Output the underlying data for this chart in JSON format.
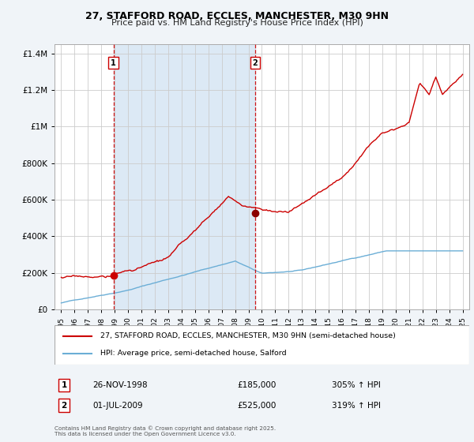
{
  "title_line1": "27, STAFFORD ROAD, ECCLES, MANCHESTER, M30 9HN",
  "title_line2": "Price paid vs. HM Land Registry's House Price Index (HPI)",
  "background_color": "#f0f4f8",
  "plot_bg_color": "#ffffff",
  "shaded_region_color": "#dce9f5",
  "hpi_line_color": "#6baed6",
  "price_line_color": "#cc0000",
  "grid_color": "#cccccc",
  "annotation1": {
    "label": "1",
    "date_x": 1998.9,
    "price": 185000,
    "date_str": "26-NOV-1998",
    "price_str": "£185,000",
    "hpi_str": "305% ↑ HPI"
  },
  "annotation2": {
    "label": "2",
    "date_x": 2009.5,
    "price": 525000,
    "date_str": "01-JUL-2009",
    "price_str": "£525,000",
    "hpi_str": "319% ↑ HPI"
  },
  "legend_line1": "27, STAFFORD ROAD, ECCLES, MANCHESTER, M30 9HN (semi-detached house)",
  "legend_line2": "HPI: Average price, semi-detached house, Salford",
  "footer": "Contains HM Land Registry data © Crown copyright and database right 2025.\nThis data is licensed under the Open Government Licence v3.0.",
  "ylim": [
    0,
    1450000
  ],
  "xlim": [
    1994.5,
    2025.5
  ],
  "yticks": [
    0,
    200000,
    400000,
    600000,
    800000,
    1000000,
    1200000,
    1400000
  ],
  "ytick_labels": [
    "£0",
    "£200K",
    "£400K",
    "£600K",
    "£800K",
    "£1M",
    "£1.2M",
    "£1.4M"
  ],
  "xticks": [
    1995,
    1996,
    1997,
    1998,
    1999,
    2000,
    2001,
    2002,
    2003,
    2004,
    2005,
    2006,
    2007,
    2008,
    2009,
    2010,
    2011,
    2012,
    2013,
    2014,
    2015,
    2016,
    2017,
    2018,
    2019,
    2020,
    2021,
    2022,
    2023,
    2024,
    2025
  ]
}
